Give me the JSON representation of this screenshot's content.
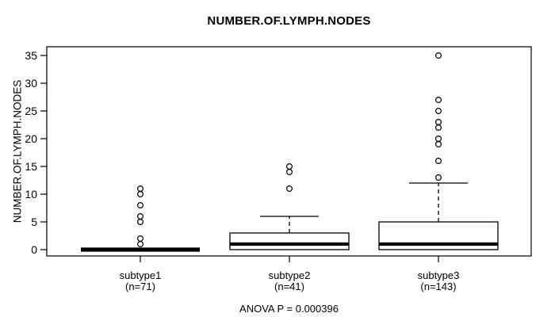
{
  "chart_data": {
    "type": "boxplot",
    "title": "NUMBER.OF.LYMPH.NODES",
    "ylabel": "NUMBER.OF.LYMPH.NODES",
    "footer": "ANOVA P = 0.000396",
    "anova_p": "0.000396",
    "ylim": [
      0,
      35
    ],
    "y_ticks": [
      0,
      5,
      10,
      15,
      20,
      25,
      30,
      35
    ],
    "grid": false,
    "legend": "none",
    "groups": [
      {
        "label": "subtype1",
        "sublabel": "(n=71)",
        "n": 71,
        "q1": 0,
        "median": 0,
        "q3": 0,
        "whisker_low": 0,
        "whisker_high": 0,
        "outliers": [
          1,
          2,
          5,
          6,
          8,
          10,
          11
        ]
      },
      {
        "label": "subtype2",
        "sublabel": "(n=41)",
        "n": 41,
        "q1": 0,
        "median": 1,
        "q3": 3,
        "whisker_low": 0,
        "whisker_high": 6,
        "outliers": [
          11,
          14,
          15
        ]
      },
      {
        "label": "subtype3",
        "sublabel": "(n=143)",
        "n": 143,
        "q1": 0,
        "median": 1,
        "q3": 5,
        "whisker_low": 0,
        "whisker_high": 12,
        "outliers": [
          13,
          16,
          19,
          20,
          22,
          23,
          25,
          27,
          35
        ]
      }
    ],
    "colors": {
      "line": "#000000",
      "box_fill": "#ffffff",
      "background": "#ffffff"
    }
  }
}
